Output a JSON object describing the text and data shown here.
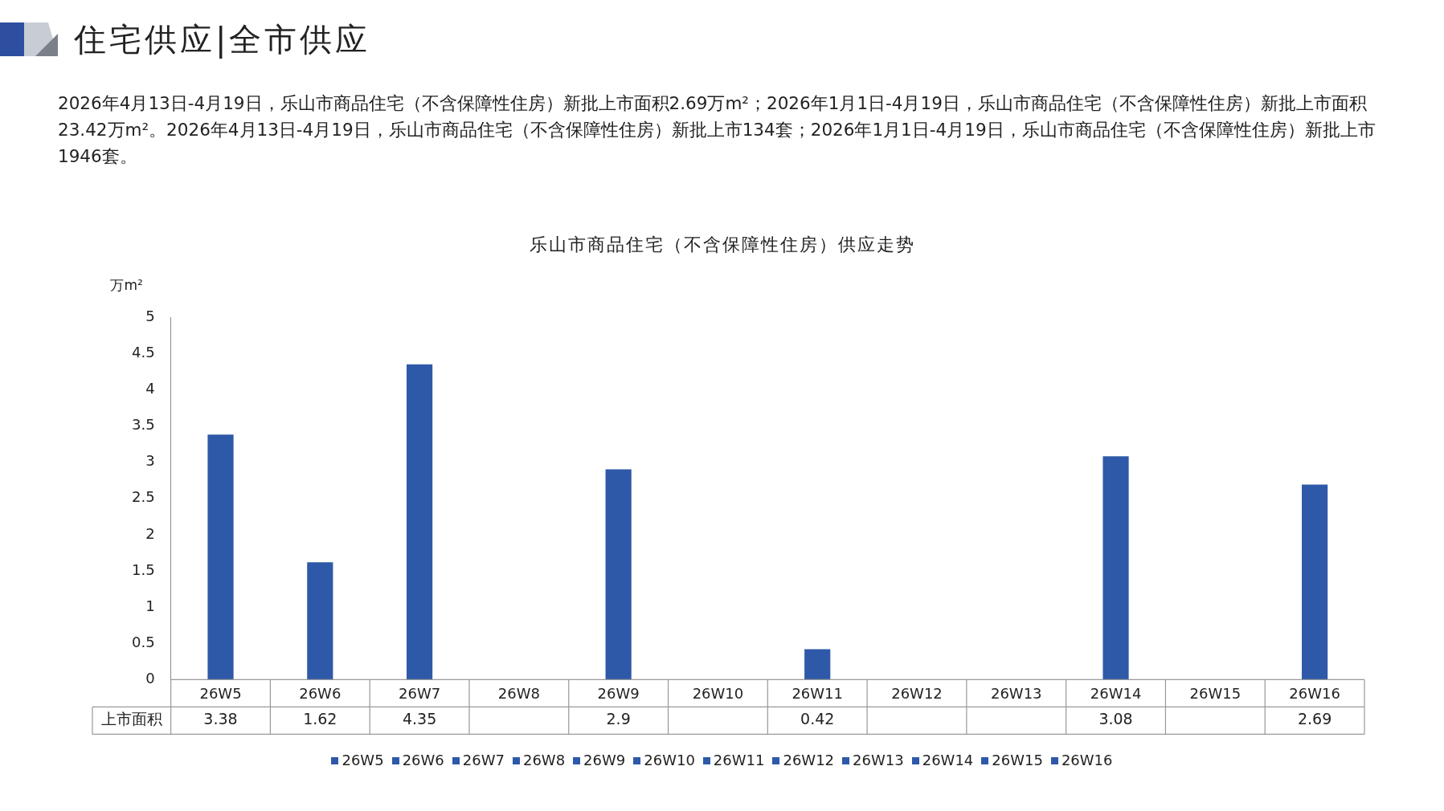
{
  "chart_data": {
    "type": "bar",
    "title": "住宅供应|全市供应",
    "subtitle": "2026年4月13日-4月19日，乐山市商品住宅（不含保障性住房）新批上市面积2.69万m²；2026年1月1日-4月19日，乐山市商品住宅（不含保障性住房）新批上市面积23.42万m²。2026年4月13日-4月19日，乐山市商品住宅（不含保障性住房）新批上市134套；2026年1月1日-4月19日，乐山市商品住宅（不含保障性住房）新批上市1946套。",
    "annotations": [
      "乐山市商品住宅（不含保障性住房）供应走势"
    ],
    "ylabel": "万m²",
    "categories": [
      "26W5",
      "26W6",
      "26W7",
      "26W8",
      "26W9",
      "26W10",
      "26W11",
      "26W12",
      "26W13",
      "26W14",
      "26W15",
      "26W16"
    ],
    "series": [
      {
        "name": "上市面积",
        "color": "#2e59a8",
        "values": [
          3.38,
          1.62,
          4.35,
          null,
          2.9,
          null,
          0.42,
          null,
          null,
          3.08,
          null,
          2.69
        ]
      }
    ],
    "ylim": [
      0,
      5
    ],
    "yticks": [
      0,
      0.5,
      1,
      1.5,
      2,
      2.5,
      3,
      3.5,
      4,
      4.5,
      5
    ],
    "data_labels": true,
    "legend": "bottom",
    "grid": false
  }
}
